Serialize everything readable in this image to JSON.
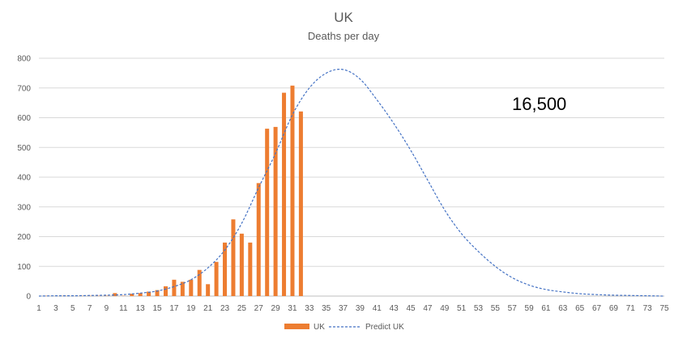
{
  "chart_data": {
    "type": "bar",
    "title": "UK",
    "subtitle": "Deaths per day",
    "annotation": "16,500",
    "xlabel": "",
    "ylabel": "",
    "xlim": [
      1,
      75
    ],
    "ylim": [
      0,
      800
    ],
    "yticks": [
      0,
      100,
      200,
      300,
      400,
      500,
      600,
      700,
      800
    ],
    "xticks": [
      1,
      3,
      5,
      7,
      9,
      11,
      13,
      15,
      17,
      19,
      21,
      23,
      25,
      27,
      29,
      31,
      33,
      35,
      37,
      39,
      41,
      43,
      45,
      47,
      49,
      51,
      53,
      55,
      57,
      59,
      61,
      63,
      65,
      67,
      69,
      71,
      73,
      75
    ],
    "grid": true,
    "legend_position": "bottom",
    "bar_color": "#ED7D31",
    "line_color": "#4472C4",
    "series": [
      {
        "name": "UK",
        "kind": "bar",
        "x": [
          1,
          2,
          3,
          4,
          5,
          6,
          7,
          8,
          9,
          10,
          11,
          12,
          13,
          14,
          15,
          16,
          17,
          18,
          19,
          20,
          21,
          22,
          23,
          24,
          25,
          26,
          27,
          28,
          29,
          30,
          31,
          32
        ],
        "values": [
          0,
          1,
          0,
          1,
          0,
          1,
          1,
          1,
          1,
          10,
          1,
          8,
          10,
          15,
          20,
          33,
          55,
          48,
          55,
          88,
          40,
          115,
          180,
          258,
          210,
          180,
          380,
          563,
          569,
          684,
          708,
          621
        ]
      },
      {
        "name": "Predict UK",
        "kind": "line",
        "style": "dashed",
        "x": [
          1,
          3,
          5,
          7,
          9,
          11,
          13,
          15,
          17,
          19,
          21,
          23,
          25,
          27,
          29,
          31,
          33,
          35,
          37,
          39,
          41,
          43,
          45,
          47,
          49,
          51,
          53,
          55,
          57,
          59,
          61,
          63,
          65,
          67,
          69,
          71,
          73,
          75
        ],
        "values": [
          0,
          1,
          1,
          2,
          3,
          5,
          10,
          17,
          32,
          55,
          95,
          155,
          245,
          365,
          480,
          610,
          700,
          750,
          762,
          730,
          660,
          580,
          490,
          390,
          290,
          210,
          150,
          100,
          62,
          37,
          22,
          14,
          8,
          5,
          3,
          2,
          1,
          0
        ]
      }
    ]
  }
}
